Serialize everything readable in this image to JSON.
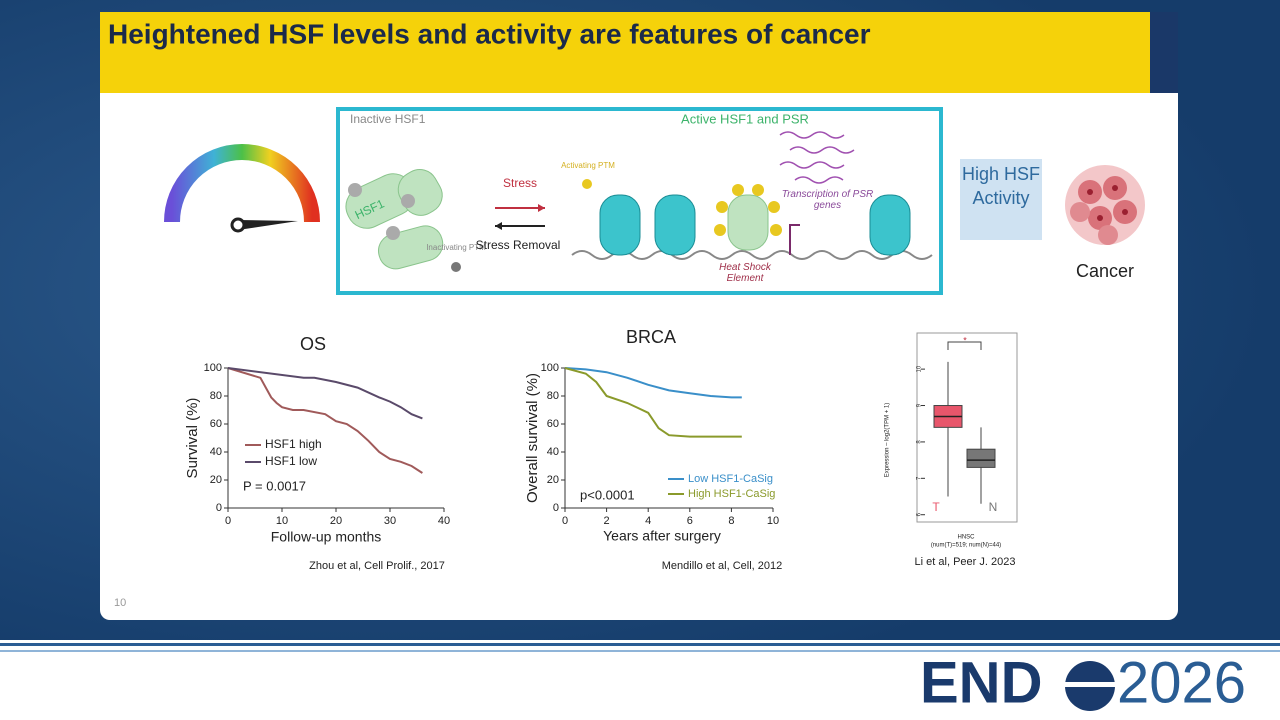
{
  "header": {
    "title": "Heightened HSF levels and activity are features of cancer"
  },
  "diagram": {
    "inactive_label": "Inactive HSF1",
    "active_label": "Active HSF1 and PSR",
    "hsf1": "HSF1",
    "inactivating_ptm": "Inactivating PTM",
    "stress": "Stress",
    "stress_removal": "Stress Removal",
    "activating_ptm": "Activating PTM",
    "transcription": "Transcription of PSR genes",
    "hse": "Heat Shock Element",
    "high_activity": "High HSF Activity",
    "cancer": "Cancer"
  },
  "charts": [
    {
      "type": "line",
      "title": "OS",
      "x_label": "Follow-up months",
      "y_label": "Survival (%)",
      "xlim": [
        0,
        40
      ],
      "xticks": [
        0,
        10,
        20,
        30,
        40
      ],
      "ylim": [
        0,
        100
      ],
      "yticks": [
        0,
        20,
        40,
        60,
        80,
        100
      ],
      "annotation": "P = 0.0017",
      "citation": "Zhou et al, Cell Prolif., 2017",
      "series": [
        {
          "name": "HSF1 high",
          "color": "#a05a5a",
          "x": [
            0,
            6,
            7,
            8,
            9,
            10,
            12,
            14,
            18,
            20,
            22,
            24,
            26,
            28,
            30,
            32,
            34,
            36
          ],
          "values": [
            100,
            93,
            86,
            79,
            75,
            72,
            70,
            70,
            67,
            62,
            60,
            55,
            48,
            40,
            35,
            33,
            30,
            25
          ]
        },
        {
          "name": "HSF1 low",
          "color": "#5a4a6a",
          "x": [
            0,
            14,
            16,
            20,
            24,
            28,
            30,
            32,
            34,
            36
          ],
          "values": [
            100,
            93,
            93,
            90,
            86,
            79,
            76,
            72,
            67,
            64
          ]
        }
      ]
    },
    {
      "type": "line",
      "title": "BRCA",
      "x_label": "Years after surgery",
      "y_label": "Overall survival (%)",
      "xlim": [
        0,
        10
      ],
      "xticks": [
        0,
        2,
        4,
        6,
        8,
        10
      ],
      "ylim": [
        0,
        100
      ],
      "yticks": [
        0,
        20,
        40,
        60,
        80,
        100
      ],
      "annotation": "p<0.0001",
      "citation": "Mendillo et al, Cell, 2012",
      "series": [
        {
          "name": "Low HSF1-CaSig",
          "color": "#3a8fc9",
          "x": [
            0,
            1,
            2,
            3,
            4,
            5,
            6,
            7,
            8,
            8.5
          ],
          "values": [
            100,
            99,
            97,
            93,
            88,
            84,
            82,
            80,
            79,
            79
          ]
        },
        {
          "name": "High HSF1-CaSig",
          "color": "#8a9a2b",
          "x": [
            0,
            1,
            1.5,
            2,
            3,
            4,
            4.5,
            5,
            6,
            8.5
          ],
          "values": [
            100,
            96,
            90,
            80,
            75,
            68,
            57,
            52,
            51,
            51
          ]
        }
      ]
    },
    {
      "type": "box",
      "title": "HNSC",
      "subtitle": "(num(T)=519; num(N)=44)",
      "y_label": "Expression – log2(TPM + 1)",
      "ylim": [
        5.8,
        10.8
      ],
      "yticks": [
        6,
        7,
        8,
        9,
        10
      ],
      "annotation": "*",
      "citation": "Li et al, Peer J. 2023",
      "boxes": [
        {
          "name": "T",
          "color": "#e8566b",
          "low": 6.5,
          "q1": 8.4,
          "median": 8.7,
          "q3": 9.0,
          "high": 10.2
        },
        {
          "name": "N",
          "color": "#777777",
          "low": 6.3,
          "q1": 7.3,
          "median": 7.5,
          "q3": 7.8,
          "high": 8.4
        }
      ]
    }
  ],
  "footer": {
    "page": "10",
    "logo_left": "END",
    "logo_right": "2026"
  }
}
